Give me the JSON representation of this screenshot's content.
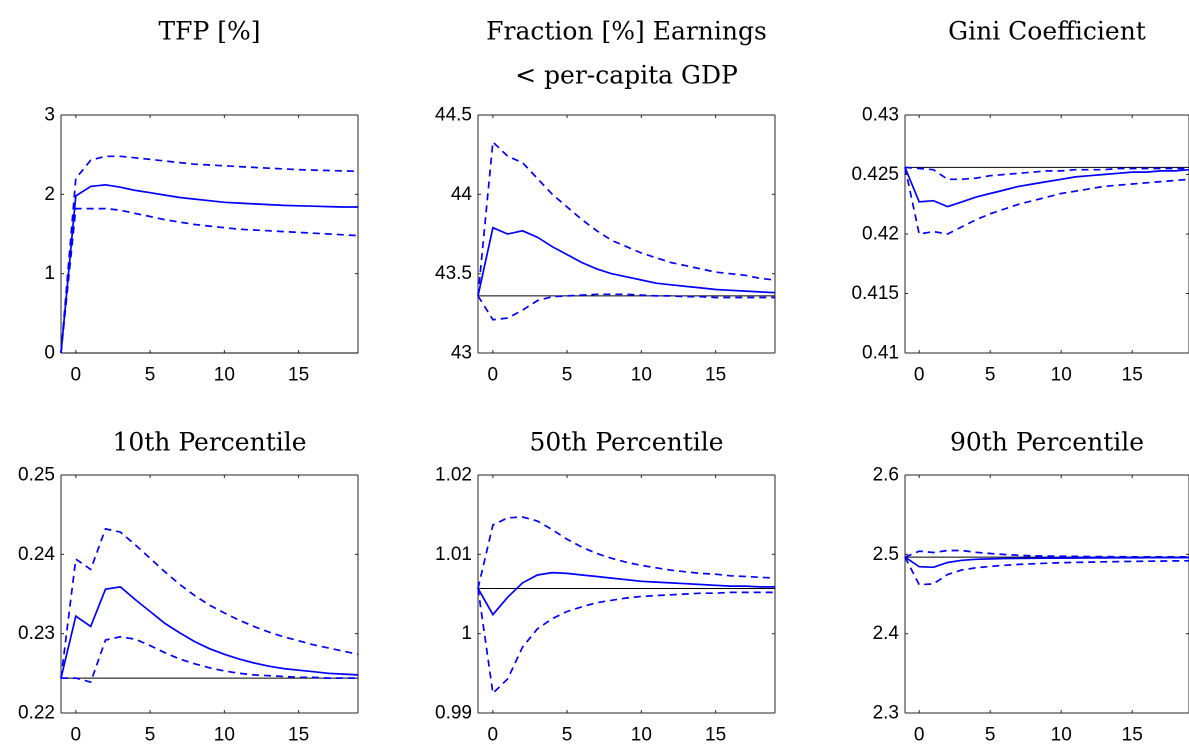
{
  "colors": {
    "series": "#0000ff",
    "baseline": "#000000"
  },
  "chart_data": [
    {
      "type": "line",
      "title": [
        "TFP [%]"
      ],
      "x": [
        -1,
        0,
        1,
        2,
        3,
        4,
        5,
        6,
        7,
        8,
        9,
        10,
        11,
        12,
        13,
        14,
        15,
        16,
        17,
        18,
        19
      ],
      "xlim": [
        -1,
        19
      ],
      "ylim": [
        0,
        3
      ],
      "xticks": [
        0,
        5,
        10,
        15
      ],
      "xtick_labels": [
        "0",
        "5",
        "10",
        "15"
      ],
      "yticks": [
        0,
        1,
        2,
        3
      ],
      "ytick_labels": [
        "0",
        "1",
        "2",
        "3"
      ],
      "grid": false,
      "legend": "none",
      "series": [
        {
          "style": "solid",
          "values": [
            0,
            1.98,
            2.1,
            2.12,
            2.09,
            2.05,
            2.02,
            1.99,
            1.96,
            1.94,
            1.92,
            1.9,
            1.89,
            1.88,
            1.87,
            1.86,
            1.855,
            1.85,
            1.845,
            1.84,
            1.84
          ]
        },
        {
          "style": "dashed",
          "values": [
            0,
            2.2,
            2.43,
            2.48,
            2.48,
            2.46,
            2.44,
            2.42,
            2.4,
            2.38,
            2.37,
            2.36,
            2.35,
            2.34,
            2.33,
            2.32,
            2.31,
            2.305,
            2.3,
            2.295,
            2.29
          ]
        },
        {
          "style": "dashed",
          "values": [
            0,
            1.82,
            1.82,
            1.82,
            1.8,
            1.76,
            1.72,
            1.68,
            1.65,
            1.62,
            1.6,
            1.58,
            1.56,
            1.55,
            1.54,
            1.53,
            1.52,
            1.51,
            1.5,
            1.49,
            1.48
          ]
        }
      ],
      "baseline": 0
    },
    {
      "type": "line",
      "title": [
        "Fraction [%] Earnings",
        "< per-capita GDP"
      ],
      "x": [
        -1,
        0,
        1,
        2,
        3,
        4,
        5,
        6,
        7,
        8,
        9,
        10,
        11,
        12,
        13,
        14,
        15,
        16,
        17,
        18,
        19
      ],
      "xlim": [
        -1,
        19
      ],
      "ylim": [
        43,
        44.5
      ],
      "xticks": [
        0,
        5,
        10,
        15
      ],
      "xtick_labels": [
        "0",
        "5",
        "10",
        "15"
      ],
      "yticks": [
        43,
        43.5,
        44,
        44.5
      ],
      "ytick_labels": [
        "43",
        "43.5",
        "44",
        "44.5"
      ],
      "grid": false,
      "legend": "none",
      "series": [
        {
          "style": "solid",
          "values": [
            43.36,
            43.79,
            43.75,
            43.77,
            43.73,
            43.67,
            43.62,
            43.57,
            43.53,
            43.5,
            43.48,
            43.46,
            43.44,
            43.43,
            43.42,
            43.41,
            43.4,
            43.395,
            43.39,
            43.385,
            43.38
          ]
        },
        {
          "style": "dashed",
          "values": [
            43.36,
            44.33,
            44.24,
            44.2,
            44.1,
            44,
            43.92,
            43.84,
            43.77,
            43.71,
            43.67,
            43.63,
            43.6,
            43.57,
            43.55,
            43.53,
            43.51,
            43.5,
            43.49,
            43.47,
            43.46
          ]
        },
        {
          "style": "dashed",
          "values": [
            43.36,
            43.21,
            43.22,
            43.27,
            43.33,
            43.355,
            43.36,
            43.365,
            43.37,
            43.37,
            43.37,
            43.365,
            43.36,
            43.36,
            43.355,
            43.355,
            43.35,
            43.35,
            43.35,
            43.35,
            43.35
          ]
        }
      ],
      "baseline": 43.36
    },
    {
      "type": "line",
      "title": [
        "Gini Coefficient"
      ],
      "x": [
        -1,
        0,
        1,
        2,
        3,
        4,
        5,
        6,
        7,
        8,
        9,
        10,
        11,
        12,
        13,
        14,
        15,
        16,
        17,
        18,
        19
      ],
      "xlim": [
        -1,
        19
      ],
      "ylim": [
        0.41,
        0.43
      ],
      "xticks": [
        0,
        5,
        10,
        15
      ],
      "xtick_labels": [
        "0",
        "5",
        "10",
        "15"
      ],
      "yticks": [
        0.41,
        0.415,
        0.42,
        0.425,
        0.43
      ],
      "ytick_labels": [
        "0.41",
        "0.415",
        "0.42",
        "0.425",
        "0.43"
      ],
      "grid": false,
      "legend": "none",
      "series": [
        {
          "style": "solid",
          "values": [
            0.4256,
            0.4227,
            0.4228,
            0.4223,
            0.4227,
            0.4231,
            0.4234,
            0.4237,
            0.424,
            0.4242,
            0.4244,
            0.4246,
            0.4248,
            0.4249,
            0.425,
            0.4251,
            0.4252,
            0.4252,
            0.4253,
            0.4253,
            0.4254
          ]
        },
        {
          "style": "dashed",
          "values": [
            0.4256,
            0.4255,
            0.4254,
            0.4246,
            0.4246,
            0.4247,
            0.4249,
            0.425,
            0.4251,
            0.4252,
            0.4253,
            0.4253,
            0.4254,
            0.4254,
            0.4254,
            0.4255,
            0.4255,
            0.4255,
            0.4255,
            0.4255,
            0.4255
          ]
        },
        {
          "style": "dashed",
          "values": [
            0.4256,
            0.42,
            0.4202,
            0.42,
            0.4206,
            0.4212,
            0.4217,
            0.4221,
            0.4225,
            0.4228,
            0.4231,
            0.4234,
            0.4236,
            0.4238,
            0.424,
            0.4241,
            0.4242,
            0.4243,
            0.4244,
            0.4245,
            0.4246
          ]
        }
      ],
      "baseline": 0.4256
    },
    {
      "type": "line",
      "title": [
        "10th Percentile"
      ],
      "x": [
        -1,
        0,
        1,
        2,
        3,
        4,
        5,
        6,
        7,
        8,
        9,
        10,
        11,
        12,
        13,
        14,
        15,
        16,
        17,
        18,
        19
      ],
      "xlim": [
        -1,
        19
      ],
      "ylim": [
        0.22,
        0.25
      ],
      "xticks": [
        0,
        5,
        10,
        15
      ],
      "xtick_labels": [
        "0",
        "5",
        "10",
        "15"
      ],
      "yticks": [
        0.22,
        0.23,
        0.24,
        0.25
      ],
      "ytick_labels": [
        "0.22",
        "0.23",
        "0.24",
        "0.25"
      ],
      "grid": false,
      "legend": "none",
      "series": [
        {
          "style": "solid",
          "values": [
            0.2244,
            0.2322,
            0.2309,
            0.2356,
            0.2359,
            0.2343,
            0.2328,
            0.2313,
            0.2301,
            0.229,
            0.2281,
            0.2274,
            0.2268,
            0.2263,
            0.2259,
            0.2256,
            0.2254,
            0.2252,
            0.225,
            0.2249,
            0.2248
          ]
        },
        {
          "style": "dashed",
          "values": [
            0.2244,
            0.2394,
            0.2381,
            0.2432,
            0.2428,
            0.2412,
            0.2395,
            0.2378,
            0.2362,
            0.2348,
            0.2336,
            0.2326,
            0.2317,
            0.2309,
            0.2302,
            0.2296,
            0.2291,
            0.2286,
            0.2282,
            0.2278,
            0.2274
          ]
        },
        {
          "style": "dashed",
          "values": [
            0.2244,
            0.2244,
            0.2239,
            0.2292,
            0.2296,
            0.2293,
            0.2285,
            0.2276,
            0.2268,
            0.2262,
            0.2257,
            0.2253,
            0.225,
            0.2248,
            0.2247,
            0.2246,
            0.2245,
            0.2245,
            0.2244,
            0.2244,
            0.2244
          ]
        }
      ],
      "baseline": 0.2244
    },
    {
      "type": "line",
      "title": [
        "50th Percentile"
      ],
      "x": [
        -1,
        0,
        1,
        2,
        3,
        4,
        5,
        6,
        7,
        8,
        9,
        10,
        11,
        12,
        13,
        14,
        15,
        16,
        17,
        18,
        19
      ],
      "xlim": [
        -1,
        19
      ],
      "ylim": [
        0.99,
        1.02
      ],
      "xticks": [
        0,
        5,
        10,
        15
      ],
      "xtick_labels": [
        "0",
        "5",
        "10",
        "15"
      ],
      "yticks": [
        0.99,
        1.0,
        1.01,
        1.02
      ],
      "ytick_labels": [
        "0.99",
        "1",
        "1.01",
        "1.02"
      ],
      "grid": false,
      "legend": "none",
      "series": [
        {
          "style": "solid",
          "values": [
            1.0057,
            1.0024,
            1.0046,
            1.0064,
            1.0074,
            1.0077,
            1.0076,
            1.0074,
            1.0072,
            1.007,
            1.0068,
            1.0066,
            1.0065,
            1.0064,
            1.0063,
            1.0062,
            1.0061,
            1.006,
            1.006,
            1.0059,
            1.0059
          ]
        },
        {
          "style": "dashed",
          "values": [
            1.0057,
            1.0137,
            1.0146,
            1.0147,
            1.0142,
            1.0131,
            1.0119,
            1.0109,
            1.0101,
            1.0095,
            1.009,
            1.0086,
            1.0083,
            1.008,
            1.0078,
            1.0076,
            1.0075,
            1.0073,
            1.0072,
            1.0071,
            1.007
          ]
        },
        {
          "style": "dashed",
          "values": [
            1.0057,
            0.9925,
            0.9943,
            0.9983,
            1.0006,
            1.0019,
            1.0028,
            1.0034,
            1.0039,
            1.0042,
            1.0045,
            1.0047,
            1.0048,
            1.0049,
            1.005,
            1.0051,
            1.0051,
            1.0052,
            1.0052,
            1.0052,
            1.0052
          ]
        }
      ],
      "baseline": 1.0057
    },
    {
      "type": "line",
      "title": [
        "90th Percentile"
      ],
      "x": [
        -1,
        0,
        1,
        2,
        3,
        4,
        5,
        6,
        7,
        8,
        9,
        10,
        11,
        12,
        13,
        14,
        15,
        16,
        17,
        18,
        19
      ],
      "xlim": [
        -1,
        19
      ],
      "ylim": [
        2.3,
        2.6
      ],
      "xticks": [
        0,
        5,
        10,
        15
      ],
      "xtick_labels": [
        "0",
        "5",
        "10",
        "15"
      ],
      "yticks": [
        2.3,
        2.4,
        2.5,
        2.6
      ],
      "ytick_labels": [
        "2.3",
        "2.4",
        "2.5",
        "2.6"
      ],
      "grid": false,
      "legend": "none",
      "series": [
        {
          "style": "solid",
          "values": [
            2.4965,
            2.4844,
            2.4836,
            2.4897,
            2.4925,
            2.4937,
            2.4943,
            2.4947,
            2.4949,
            2.495,
            2.4952,
            2.4953,
            2.4954,
            2.4955,
            2.4955,
            2.4956,
            2.4956,
            2.4957,
            2.4957,
            2.4957,
            2.4958
          ]
        },
        {
          "style": "dashed",
          "values": [
            2.4965,
            2.5039,
            2.5023,
            2.5048,
            2.5048,
            2.5026,
            2.5011,
            2.4998,
            2.4988,
            2.4982,
            2.4978,
            2.4976,
            2.4974,
            2.4972,
            2.4971,
            2.497,
            2.4969,
            2.4969,
            2.4968,
            2.4968,
            2.4968
          ]
        },
        {
          "style": "dashed",
          "values": [
            2.4965,
            2.4617,
            2.4627,
            2.4746,
            2.4804,
            2.483,
            2.4848,
            2.4862,
            2.4873,
            2.4881,
            2.4888,
            2.4894,
            2.4898,
            2.4902,
            2.4906,
            2.4909,
            2.4911,
            2.4913,
            2.4915,
            2.4917,
            2.4918
          ]
        }
      ],
      "baseline": 2.4965
    }
  ]
}
